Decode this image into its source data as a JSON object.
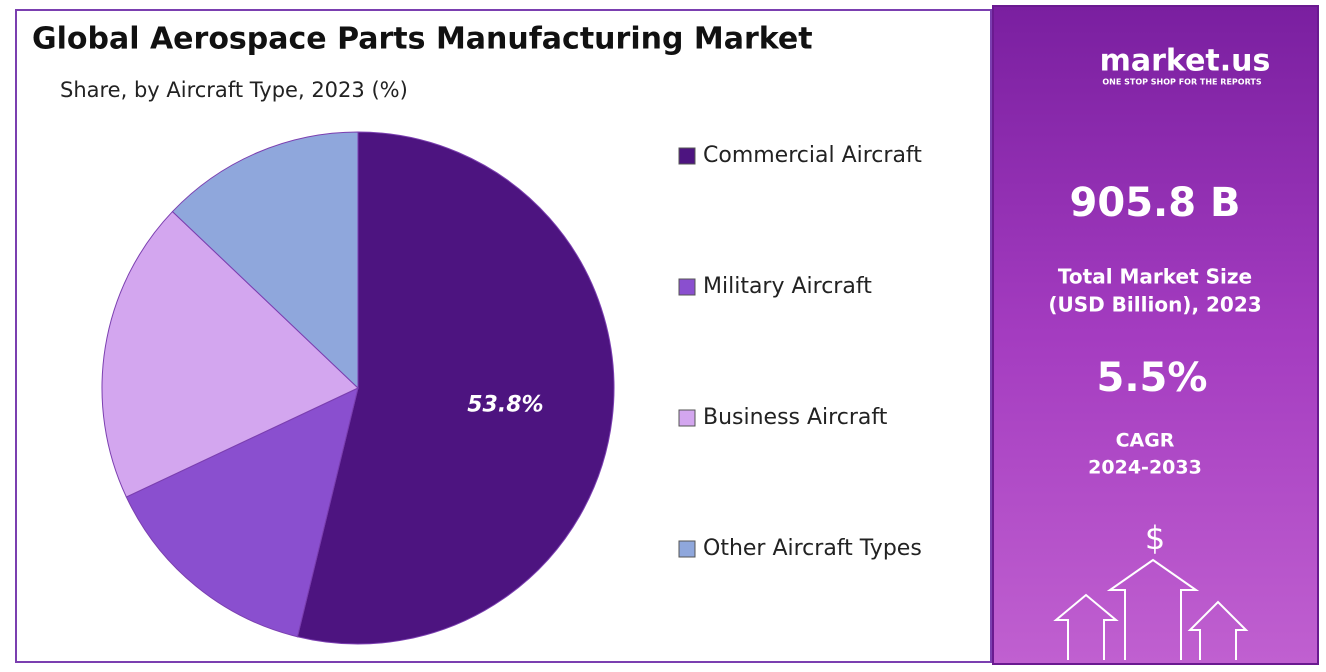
{
  "chart_data": {
    "type": "pie",
    "title": "Global Aerospace Parts Manufacturing Market",
    "subtitle": "Share, by Aircraft Type, 2023 (%)",
    "categories": [
      "Commercial Aircraft",
      "Military Aircraft",
      "Business Aircraft",
      "Other Aircraft Types"
    ],
    "values": [
      53.8,
      14.2,
      19.1,
      12.9
    ],
    "value_labels": [
      "53.8%",
      null,
      null,
      null
    ],
    "colors": [
      "#4d1480",
      "#8a4fcf",
      "#d3a6ef",
      "#8fa7dc"
    ]
  },
  "panel": {
    "logo": "market.us",
    "tagline": "ONE STOP SHOP FOR THE REPORTS",
    "market_size": "905.8 B",
    "market_size_label": [
      "Total Market Size",
      "(USD Billion), 2023"
    ],
    "cagr": "5.5%",
    "cagr_label": [
      "CAGR",
      "2024-2033"
    ],
    "icon": "$"
  }
}
